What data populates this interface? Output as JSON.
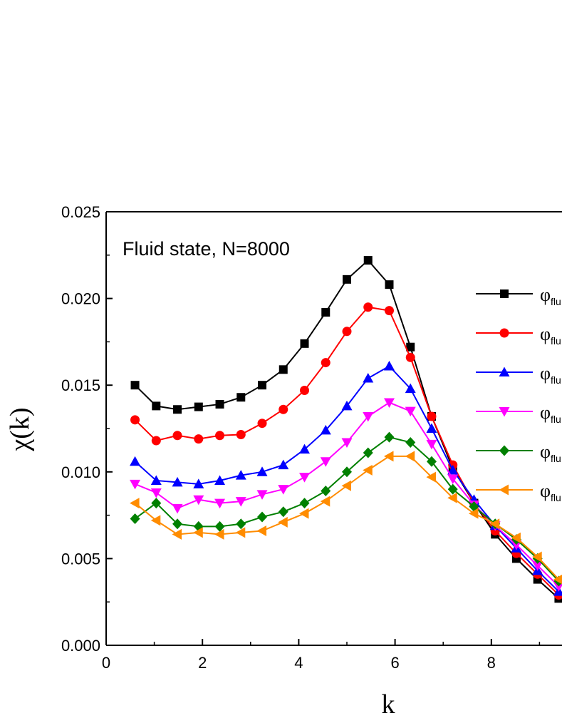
{
  "chart_data": {
    "type": "line",
    "annotation": "Fluid state, N=8000",
    "xlabel": "k",
    "ylabel": "χ(k)",
    "xlim": [
      0,
      9.8
    ],
    "ylim": [
      0,
      0.025
    ],
    "xticks": [
      0,
      2,
      4,
      6,
      8
    ],
    "yticks": [
      0.0,
      0.005,
      0.01,
      0.015,
      0.02,
      0.025
    ],
    "ytick_labels": [
      "0.000",
      "0.005",
      "0.010",
      "0.015",
      "0.020",
      "0.025"
    ],
    "xtick_labels": [
      "0",
      "2",
      "4",
      "6",
      "8"
    ],
    "grid": false,
    "legend_position": "right",
    "x": [
      0.6,
      1.04,
      1.48,
      1.92,
      2.36,
      2.8,
      3.24,
      3.68,
      4.12,
      4.56,
      5.0,
      5.44,
      5.88,
      6.32,
      6.76,
      7.2,
      7.64,
      8.08,
      8.52,
      8.96,
      9.4
    ],
    "series": [
      {
        "name": "φfluid",
        "name_main": "φ",
        "name_sub": "flu",
        "color": "#000000",
        "marker": "square",
        "values": [
          0.015,
          0.0138,
          0.0136,
          0.01375,
          0.0139,
          0.0143,
          0.015,
          0.0159,
          0.0174,
          0.0192,
          0.0211,
          0.0222,
          0.0208,
          0.0172,
          0.0132,
          0.0102,
          0.0082,
          0.0064,
          0.005,
          0.0038,
          0.0027
        ]
      },
      {
        "name": "φfluid",
        "name_main": "φ",
        "name_sub": "flu",
        "color": "#ff0000",
        "marker": "circle",
        "values": [
          0.013,
          0.0118,
          0.0121,
          0.0119,
          0.0121,
          0.01215,
          0.0128,
          0.0136,
          0.0147,
          0.0163,
          0.0181,
          0.0195,
          0.0193,
          0.0166,
          0.0132,
          0.0104,
          0.0082,
          0.0066,
          0.0053,
          0.0041,
          0.0029
        ]
      },
      {
        "name": "φfluid",
        "name_main": "φ",
        "name_sub": "flu",
        "color": "#0000ff",
        "marker": "triangle-up",
        "values": [
          0.0106,
          0.0095,
          0.0094,
          0.0093,
          0.0095,
          0.0098,
          0.01,
          0.0104,
          0.0113,
          0.0124,
          0.0138,
          0.0154,
          0.0161,
          0.0148,
          0.0125,
          0.0101,
          0.0084,
          0.0069,
          0.0056,
          0.0043,
          0.0031
        ]
      },
      {
        "name": "φfluid",
        "name_main": "φ",
        "name_sub": "flu",
        "color": "#ff00ff",
        "marker": "triangle-down",
        "values": [
          0.0093,
          0.0088,
          0.0079,
          0.0084,
          0.0082,
          0.0083,
          0.0087,
          0.009,
          0.0097,
          0.0106,
          0.0117,
          0.0132,
          0.014,
          0.0135,
          0.0116,
          0.0096,
          0.0081,
          0.0069,
          0.0058,
          0.0046,
          0.0034
        ]
      },
      {
        "name": "φfluid",
        "name_main": "φ",
        "name_sub": "flu",
        "color": "#008000",
        "marker": "diamond",
        "values": [
          0.0073,
          0.0082,
          0.007,
          0.00685,
          0.00685,
          0.007,
          0.0074,
          0.0077,
          0.0082,
          0.0089,
          0.01,
          0.0111,
          0.012,
          0.0117,
          0.0106,
          0.009,
          0.008,
          0.007,
          0.0061,
          0.005,
          0.0037
        ]
      },
      {
        "name": "φfluid",
        "name_main": "φ",
        "name_sub": "flu",
        "color": "#ff8c00",
        "marker": "triangle-left",
        "values": [
          0.0082,
          0.0072,
          0.0064,
          0.0065,
          0.0064,
          0.0065,
          0.0066,
          0.0071,
          0.0076,
          0.0083,
          0.0092,
          0.0101,
          0.0109,
          0.0109,
          0.0097,
          0.0085,
          0.0076,
          0.007,
          0.0062,
          0.0051,
          0.0038
        ]
      }
    ]
  }
}
